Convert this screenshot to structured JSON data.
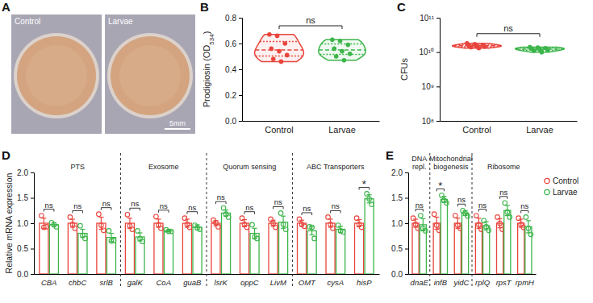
{
  "image_panel": {
    "panel": "A",
    "images": [
      "Control",
      "Larvae"
    ],
    "scale_bar": "5mm"
  },
  "chart_data": [
    {
      "panel": "B",
      "type": "violin",
      "y_label": "Prodigiosin (OD",
      "y_label_subscript": "534",
      "y_label_suffix": ")",
      "categories": [
        "Control",
        "Larvae"
      ],
      "colors": [
        "#e8453c",
        "#3cb54a"
      ],
      "values": [
        [
          0.67,
          0.66,
          0.6,
          0.56,
          0.54,
          0.51,
          0.48,
          0.46
        ],
        [
          0.63,
          0.62,
          0.59,
          0.56,
          0.54,
          0.52,
          0.5,
          0.47
        ]
      ],
      "ylim": [
        0,
        0.8
      ],
      "yticks": [
        {
          "value": 0,
          "label": "0.0"
        },
        0.2,
        0.4,
        0.6,
        0.8
      ],
      "annotation": "ns"
    },
    {
      "panel": "C",
      "type": "violin",
      "log": "y",
      "y_label": "CFUs",
      "categories": [
        "Control",
        "Larvae"
      ],
      "colors": [
        "#e8453c",
        "#3cb54a"
      ],
      "values": [
        [
          18000000000,
          17000000000,
          16000000000,
          15500000000,
          15000000000,
          14500000000,
          14000000000,
          13000000000
        ],
        [
          14000000000,
          13500000000,
          13000000000,
          12500000000,
          12000000000,
          11500000000,
          11000000000,
          10000000000
        ]
      ],
      "ylim": [
        100000000,
        100000000000
      ],
      "yticks": [
        {
          "value": 100000000,
          "label": "10⁸"
        },
        {
          "value": 1000000000,
          "label": "10⁹"
        },
        {
          "value": 10000000000,
          "label": "10¹⁰"
        },
        {
          "value": 100000000000,
          "label": "10¹¹"
        }
      ],
      "annotation": "ns"
    },
    {
      "panel": "D",
      "type": "bar",
      "y_label": "Relative mRNA expression",
      "categories": [
        "CBA",
        "chbC",
        "srlB",
        "galK",
        "CoA",
        "guaB",
        "lsrK",
        "oppC",
        "LivM",
        "OMT",
        "cysA",
        "hisP"
      ],
      "category_groups": [
        "PTS",
        "PTS",
        "PTS",
        "Exosome",
        "Exosome",
        "Exosome",
        "Quorum sensing",
        "Quorum sensing",
        "Quorum sensing",
        "ABC Transporters",
        "ABC Transporters",
        "ABC Transporters"
      ],
      "series": [
        {
          "color": "#e8453c",
          "values": [
            1.0,
            1.0,
            1.0,
            1.0,
            1.0,
            1.0,
            1.0,
            1.0,
            1.0,
            1.0,
            1.0,
            1.0
          ],
          "errors": [
            0.1,
            0.08,
            0.12,
            0.1,
            0.08,
            0.08,
            0.05,
            0.07,
            0.06,
            0.06,
            0.08,
            0.07
          ],
          "points": [
            [
              1.15,
              0.92,
              0.93
            ],
            [
              1.12,
              0.98,
              0.9
            ],
            [
              1.18,
              0.96,
              0.86
            ],
            [
              1.17,
              0.95,
              0.88
            ],
            [
              1.13,
              0.97,
              0.9
            ],
            [
              1.1,
              0.98,
              0.92
            ],
            [
              1.06,
              1.01,
              0.93
            ],
            [
              1.1,
              0.98,
              0.92
            ],
            [
              1.08,
              1.0,
              0.92
            ],
            [
              1.08,
              0.98,
              0.94
            ],
            [
              1.12,
              0.98,
              0.9
            ],
            [
              1.1,
              0.98,
              0.92
            ]
          ]
        },
        {
          "color": "#3cb54a",
          "values": [
            0.97,
            0.8,
            0.72,
            0.73,
            0.85,
            0.92,
            1.2,
            0.8,
            1.02,
            0.85,
            0.88,
            1.48
          ],
          "errors": [
            0.04,
            0.08,
            0.08,
            0.08,
            0.02,
            0.05,
            0.06,
            0.1,
            0.12,
            0.08,
            0.06,
            0.08
          ],
          "points": [
            [
              1.01,
              0.97,
              0.93
            ],
            [
              0.95,
              0.76,
              0.7
            ],
            [
              0.85,
              0.65,
              0.66
            ],
            [
              0.85,
              0.7,
              0.64
            ],
            [
              0.87,
              0.84,
              0.84
            ],
            [
              0.96,
              0.91,
              0.88
            ],
            [
              1.3,
              1.18,
              1.12
            ],
            [
              0.97,
              0.73,
              0.7
            ],
            [
              1.2,
              0.98,
              0.88
            ],
            [
              0.93,
              0.92,
              0.7
            ],
            [
              0.96,
              0.85,
              0.83
            ],
            [
              1.58,
              1.48,
              1.37
            ]
          ]
        }
      ],
      "annotations": [
        "ns",
        "ns",
        "ns",
        "ns",
        "ns",
        "ns",
        "ns",
        "ns",
        "ns",
        "ns",
        "ns",
        "*"
      ],
      "ylim": [
        0,
        2
      ],
      "yticks": [
        {
          "value": 0,
          "label": "0.0"
        },
        0.5,
        {
          "value": 1,
          "label": "1.0"
        },
        1.5,
        {
          "value": 2,
          "label": "2.0"
        }
      ]
    },
    {
      "panel": "E",
      "type": "bar",
      "legend": "upper right",
      "categories": [
        "dnaE",
        "infB",
        "yidC",
        "rplQ",
        "rpsT",
        "rpmH"
      ],
      "category_groups": [
        "DNA\nrepl.",
        "Mitochondrial\nbiogenesis",
        "Mitochondrial\nbiogenesis",
        "Ribosome",
        "Ribosome",
        "Ribosome"
      ],
      "series": [
        {
          "name": "Control",
          "color": "#e8453c",
          "values": [
            1.0,
            1.0,
            1.0,
            1.0,
            1.0,
            1.0
          ],
          "errors": [
            0.08,
            0.12,
            0.1,
            0.1,
            0.09,
            0.08
          ],
          "points": [
            [
              1.1,
              0.98,
              0.9
            ],
            [
              1.18,
              0.96,
              0.86
            ],
            [
              1.15,
              0.96,
              0.9
            ],
            [
              1.15,
              0.97,
              0.88
            ],
            [
              1.12,
              1.0,
              0.88
            ],
            [
              1.1,
              0.98,
              0.92
            ]
          ]
        },
        {
          "name": "Larvae",
          "color": "#3cb54a",
          "values": [
            0.97,
            1.47,
            1.2,
            0.95,
            1.25,
            0.93
          ],
          "errors": [
            0.12,
            0.06,
            0.05,
            0.08,
            0.1,
            0.12
          ],
          "points": [
            [
              1.15,
              0.9,
              0.85
            ],
            [
              1.55,
              1.45,
              1.4
            ],
            [
              1.25,
              1.2,
              1.14
            ],
            [
              1.05,
              0.93,
              0.86
            ],
            [
              1.4,
              1.22,
              1.12
            ],
            [
              1.12,
              0.9,
              0.78
            ]
          ]
        }
      ],
      "annotations": [
        "ns",
        "*",
        "ns",
        "ns",
        "ns",
        "ns"
      ],
      "ylim": [
        0,
        2
      ],
      "yticks": [
        {
          "value": 0,
          "label": "0.0"
        },
        0.5,
        {
          "value": 1,
          "label": "1.0"
        },
        1.5,
        {
          "value": 2,
          "label": "2.0"
        }
      ]
    }
  ]
}
